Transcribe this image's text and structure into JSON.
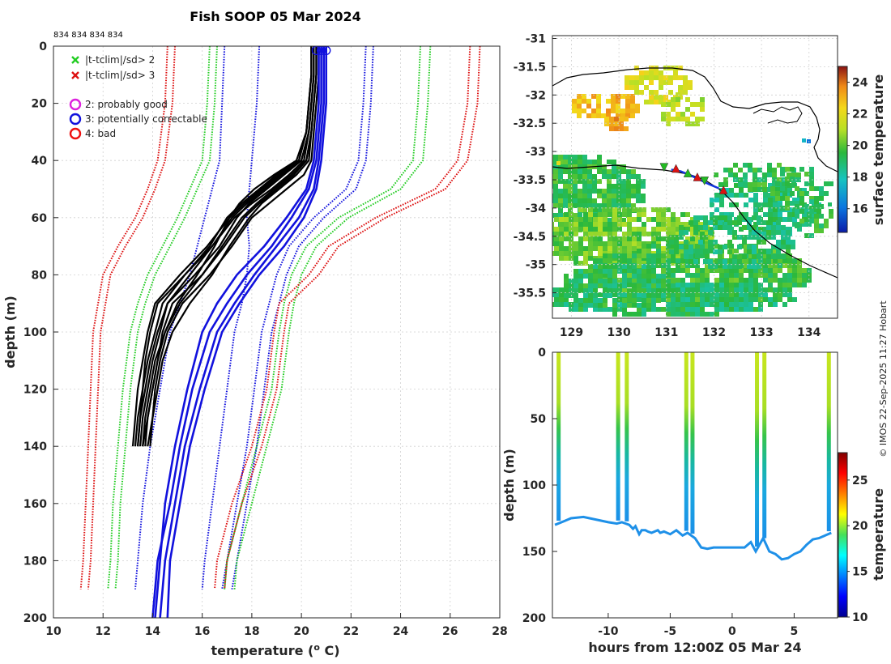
{
  "chart_data": [
    {
      "type": "line",
      "name": "temperature-profile",
      "title": "Fish SOOP 05 Mar 2024",
      "xlabel": "temperature (",
      "xlabel_sup": "o",
      "xlabel_end": " C)",
      "ylabel": "depth (m)",
      "xlim": [
        10,
        28
      ],
      "ylim": [
        0,
        200
      ],
      "y_reversed": true,
      "xticks": [
        "10",
        "12",
        "14",
        "16",
        "18",
        "20",
        "22",
        "24",
        "26",
        "28"
      ],
      "yticks": [
        "0",
        "20",
        "40",
        "60",
        "80",
        "100",
        "120",
        "140",
        "160",
        "180",
        "200"
      ],
      "grid": true,
      "header_ids": "834 834 834 834",
      "legend": [
        {
          "marker": "x",
          "color": "#22cc22",
          "label": "|t-tclim|/sd> 2"
        },
        {
          "marker": "x",
          "color": "#dd1111",
          "label": "|t-tclim|/sd> 3"
        },
        {
          "marker": "o",
          "color": "#dd22dd",
          "label": "2: probably good"
        },
        {
          "marker": "o",
          "color": "#1111dd",
          "label": "3: potentially correctable"
        },
        {
          "marker": "o",
          "color": "#ee1111",
          "label": "4: bad"
        }
      ],
      "climatology_depths": [
        0,
        20,
        40,
        50,
        60,
        70,
        80,
        90,
        100,
        120,
        140,
        160,
        180,
        190
      ],
      "climatology": [
        {
          "name": "mean-1sd",
          "color": "#1111dd",
          "left": [
            16.9,
            16.8,
            16.7,
            16.4,
            16.1,
            15.8,
            15.5,
            15.1,
            14.7,
            14.3,
            13.9,
            13.6,
            13.4,
            13.3
          ],
          "right": [
            18.3,
            18.2,
            18.0,
            17.9,
            17.8,
            17.9,
            17.8,
            17.6,
            17.3,
            17.0,
            16.7,
            16.4,
            16.1,
            16.0
          ]
        },
        {
          "name": "mean+1sd",
          "color": "#1111dd",
          "left": [
            22.6,
            22.5,
            22.3,
            21.8,
            20.5,
            19.5,
            19.0,
            18.7,
            18.4,
            18.1,
            17.8,
            17.4,
            17.0,
            16.8
          ],
          "right": [
            22.9,
            22.8,
            22.6,
            22.2,
            20.9,
            19.9,
            19.4,
            19.1,
            18.8,
            18.5,
            18.2,
            17.8,
            17.4,
            17.2
          ]
        },
        {
          "name": "mean-2sd",
          "color": "#22cc22",
          "left": [
            16.3,
            16.2,
            16.0,
            15.5,
            15.0,
            14.4,
            13.8,
            13.4,
            13.1,
            12.8,
            12.6,
            12.4,
            12.3,
            12.2
          ],
          "right": [
            16.6,
            16.5,
            16.3,
            15.8,
            15.3,
            14.7,
            14.1,
            13.7,
            13.4,
            13.1,
            12.9,
            12.7,
            12.6,
            12.5
          ]
        },
        {
          "name": "mean+2sd",
          "color": "#22cc22",
          "left": [
            24.8,
            24.7,
            24.5,
            23.6,
            21.5,
            20.2,
            19.6,
            19.3,
            19.1,
            18.8,
            18.2,
            17.6,
            17.0,
            16.9
          ],
          "right": [
            25.2,
            25.1,
            24.9,
            24.0,
            21.9,
            20.6,
            20.0,
            19.7,
            19.5,
            19.2,
            18.6,
            18.0,
            17.4,
            17.3
          ]
        },
        {
          "name": "mean-3sd",
          "color": "#dd1111",
          "left": [
            14.6,
            14.5,
            14.2,
            13.8,
            13.3,
            12.6,
            12.0,
            11.8,
            11.6,
            11.5,
            11.4,
            11.3,
            11.2,
            11.1
          ],
          "right": [
            14.9,
            14.8,
            14.5,
            14.1,
            13.6,
            12.9,
            12.3,
            12.1,
            11.9,
            11.8,
            11.7,
            11.6,
            11.5,
            11.4
          ]
        },
        {
          "name": "mean+3sd",
          "color": "#dd1111",
          "left": [
            26.8,
            26.7,
            26.3,
            25.4,
            23.0,
            21.1,
            20.3,
            19.1,
            18.9,
            18.6,
            18.0,
            17.2,
            16.6,
            16.5
          ],
          "right": [
            27.2,
            27.1,
            26.7,
            25.8,
            23.4,
            21.5,
            20.7,
            19.5,
            19.3,
            19.0,
            18.4,
            17.6,
            17.0,
            16.9
          ]
        }
      ],
      "observed_profiles": {
        "color": "#000000",
        "depths": [
          0,
          10,
          20,
          30,
          40,
          45,
          50,
          55,
          60,
          70,
          80,
          90,
          100,
          110,
          120,
          130,
          140
        ],
        "series": [
          {
            "name": "obs-1",
            "values": [
              20.4,
              20.4,
              20.3,
              20.2,
              19.8,
              18.9,
              18.1,
              17.5,
              17.1,
              16.5,
              15.8,
              15.0,
              14.5,
              14.1,
              13.9,
              13.7,
              13.6
            ]
          },
          {
            "name": "obs-2",
            "values": [
              20.5,
              20.5,
              20.4,
              20.3,
              20.0,
              19.3,
              18.6,
              17.9,
              17.4,
              16.7,
              15.7,
              14.6,
              14.3,
              14.0,
              13.8,
              13.6,
              13.5
            ]
          },
          {
            "name": "obs-3",
            "values": [
              20.6,
              20.6,
              20.5,
              20.4,
              20.2,
              19.7,
              19.0,
              18.3,
              17.7,
              16.9,
              16.0,
              14.8,
              14.4,
              14.2,
              14.0,
              13.8,
              13.7
            ]
          },
          {
            "name": "obs-4",
            "values": [
              20.7,
              20.7,
              20.6,
              20.5,
              20.4,
              20.1,
              19.4,
              18.7,
              18.0,
              17.2,
              16.3,
              15.2,
              14.6,
              14.3,
              14.1,
              14.0,
              13.8
            ]
          },
          {
            "name": "obs-5",
            "values": [
              20.4,
              20.4,
              20.3,
              20.2,
              19.9,
              19.0,
              18.3,
              17.6,
              17.0,
              16.3,
              15.3,
              14.4,
              14.1,
              13.8,
              13.6,
              13.5,
              13.4
            ]
          },
          {
            "name": "obs-6",
            "values": [
              20.5,
              20.5,
              20.4,
              20.3,
              20.1,
              19.5,
              18.8,
              18.0,
              17.3,
              16.4,
              15.5,
              14.6,
              14.2,
              13.9,
              13.7,
              13.5,
              13.4
            ]
          },
          {
            "name": "obs-7",
            "values": [
              20.6,
              20.6,
              20.5,
              20.4,
              20.3,
              19.8,
              19.1,
              18.4,
              17.9,
              17.1,
              16.4,
              15.5,
              14.8,
              14.4,
              14.2,
              14.0,
              13.9
            ]
          },
          {
            "name": "obs-8",
            "values": [
              20.5,
              20.5,
              20.4,
              20.3,
              20.0,
              19.2,
              18.5,
              17.8,
              17.2,
              16.4,
              15.3,
              14.2,
              13.9,
              13.7,
              13.6,
              13.4,
              13.3
            ]
          },
          {
            "name": "obs-9",
            "values": [
              20.6,
              20.6,
              20.5,
              20.4,
              20.2,
              19.6,
              18.9,
              18.2,
              17.6,
              16.8,
              16.0,
              15.1,
              14.5,
              14.2,
              14.0,
              13.8,
              13.6
            ]
          },
          {
            "name": "obs-10",
            "values": [
              20.4,
              20.4,
              20.3,
              20.2,
              19.9,
              19.1,
              18.4,
              17.7,
              17.1,
              16.2,
              15.1,
              14.1,
              13.8,
              13.6,
              13.4,
              13.3,
              13.2
            ]
          }
        ]
      },
      "flagged_profiles": {
        "color": "#1111dd",
        "depths": [
          0,
          20,
          40,
          50,
          60,
          70,
          80,
          90,
          100,
          120,
          140,
          160,
          180,
          200
        ],
        "series": [
          {
            "name": "flag-1",
            "values": [
              20.8,
              20.8,
              20.6,
              20.3,
              19.6,
              18.8,
              17.8,
              17.0,
              16.3,
              15.6,
              15.1,
              14.7,
              14.2,
              14.0
            ]
          },
          {
            "name": "flag-2",
            "values": [
              20.9,
              20.9,
              20.7,
              20.5,
              19.9,
              19.0,
              18.1,
              17.3,
              16.6,
              15.9,
              15.3,
              14.9,
              14.5,
              14.3
            ]
          },
          {
            "name": "flag-3",
            "values": [
              20.7,
              20.7,
              20.5,
              20.2,
              19.4,
              18.5,
              17.4,
              16.6,
              16.0,
              15.4,
              14.9,
              14.5,
              14.3,
              14.1
            ]
          },
          {
            "name": "flag-4",
            "values": [
              21.0,
              21.0,
              20.8,
              20.6,
              20.1,
              19.3,
              18.3,
              17.5,
              16.8,
              16.1,
              15.5,
              15.1,
              14.7,
              14.6
            ]
          }
        ],
        "surface_markers": [
          20.6,
          20.8,
          21.0
        ]
      }
    },
    {
      "type": "heatmap",
      "name": "surface-temperature-map",
      "xlim": [
        128.6,
        134.6
      ],
      "ylim": [
        -35.95,
        -30.95
      ],
      "xticks": [
        "129",
        "130",
        "131",
        "132",
        "133",
        "134"
      ],
      "yticks": [
        "-31",
        "-31.5",
        "-32",
        "-32.5",
        "-33",
        "-33.5",
        "-34",
        "-34.5",
        "-35",
        "-35.5"
      ],
      "grid": true,
      "colorbar": {
        "label": "surface temperature",
        "range": [
          14.5,
          25
        ],
        "ticks": [
          "16",
          "18",
          "20",
          "22",
          "24"
        ]
      },
      "ship_track": {
        "color": "#1133dd",
        "lon": [
          131.1,
          131.3,
          131.5,
          131.7,
          131.9,
          132.1
        ],
        "lat": [
          -33.32,
          -33.35,
          -33.42,
          -33.5,
          -33.58,
          -33.65
        ]
      },
      "track_markers": [
        {
          "lon": 130.95,
          "lat": -33.28,
          "kind": "down-triangle",
          "color": "#22bb22"
        },
        {
          "lon": 131.2,
          "lat": -33.3,
          "kind": "up-triangle",
          "color": "#dd1111"
        },
        {
          "lon": 131.45,
          "lat": -33.38,
          "kind": "up-triangle",
          "color": "#22bb22"
        },
        {
          "lon": 131.65,
          "lat": -33.45,
          "kind": "up-triangle",
          "color": "#dd1111"
        },
        {
          "lon": 131.8,
          "lat": -33.52,
          "kind": "down-triangle",
          "color": "#22bb22"
        },
        {
          "lon": 132.2,
          "lat": -33.68,
          "kind": "up-triangle",
          "color": "#dd1111"
        }
      ]
    },
    {
      "type": "scatter",
      "name": "depth-time-section",
      "xlabel": "hours from 12:00Z 05 Mar 24",
      "ylabel": "depth (m)",
      "xlim": [
        -14.5,
        8.5
      ],
      "ylim": [
        0,
        200
      ],
      "y_reversed": true,
      "xticks": [
        "-10",
        "-5",
        "0",
        "5"
      ],
      "yticks": [
        "0",
        "50",
        "100",
        "150",
        "200"
      ],
      "colorbar": {
        "label": "temperature",
        "range": [
          10,
          28
        ],
        "ticks": [
          "10",
          "15",
          "20",
          "25"
        ]
      },
      "casts": [
        -14,
        -9.2,
        -8.5,
        -3.7,
        -3.2,
        2.0,
        2.6,
        7.8
      ],
      "bottom_track": {
        "t": [
          -14.3,
          -13.5,
          -13.0,
          -12.0,
          -11.0,
          -10.0,
          -9.3,
          -8.9,
          -8.3,
          -8.0,
          -7.8,
          -7.5,
          -7.3,
          -7.0,
          -6.8,
          -6.5,
          -6.0,
          -5.8,
          -5.5,
          -5.0,
          -4.5,
          -4.0,
          -3.6,
          -3.0,
          -2.5,
          -2.0,
          -1.5,
          -1.0,
          -0.5,
          0.0,
          0.5,
          1.0,
          1.5,
          1.9,
          2.5,
          3.0,
          3.5,
          4.0,
          4.5,
          5.0,
          5.5,
          6.0,
          6.5,
          7.0,
          7.5,
          8.0
        ],
        "depth": [
          130,
          127,
          125,
          124,
          126,
          128,
          129,
          128,
          130,
          133,
          131,
          137,
          134,
          134,
          135,
          136,
          134,
          136,
          135,
          137,
          134,
          138,
          136,
          140,
          147,
          148,
          147,
          147,
          147,
          147,
          147,
          147,
          143,
          150,
          140,
          150,
          152,
          156,
          155,
          152,
          150,
          145,
          141,
          140,
          138,
          136
        ]
      }
    }
  ],
  "credit": "© IMOS 22-Sep-2025 11:27 Hobart"
}
